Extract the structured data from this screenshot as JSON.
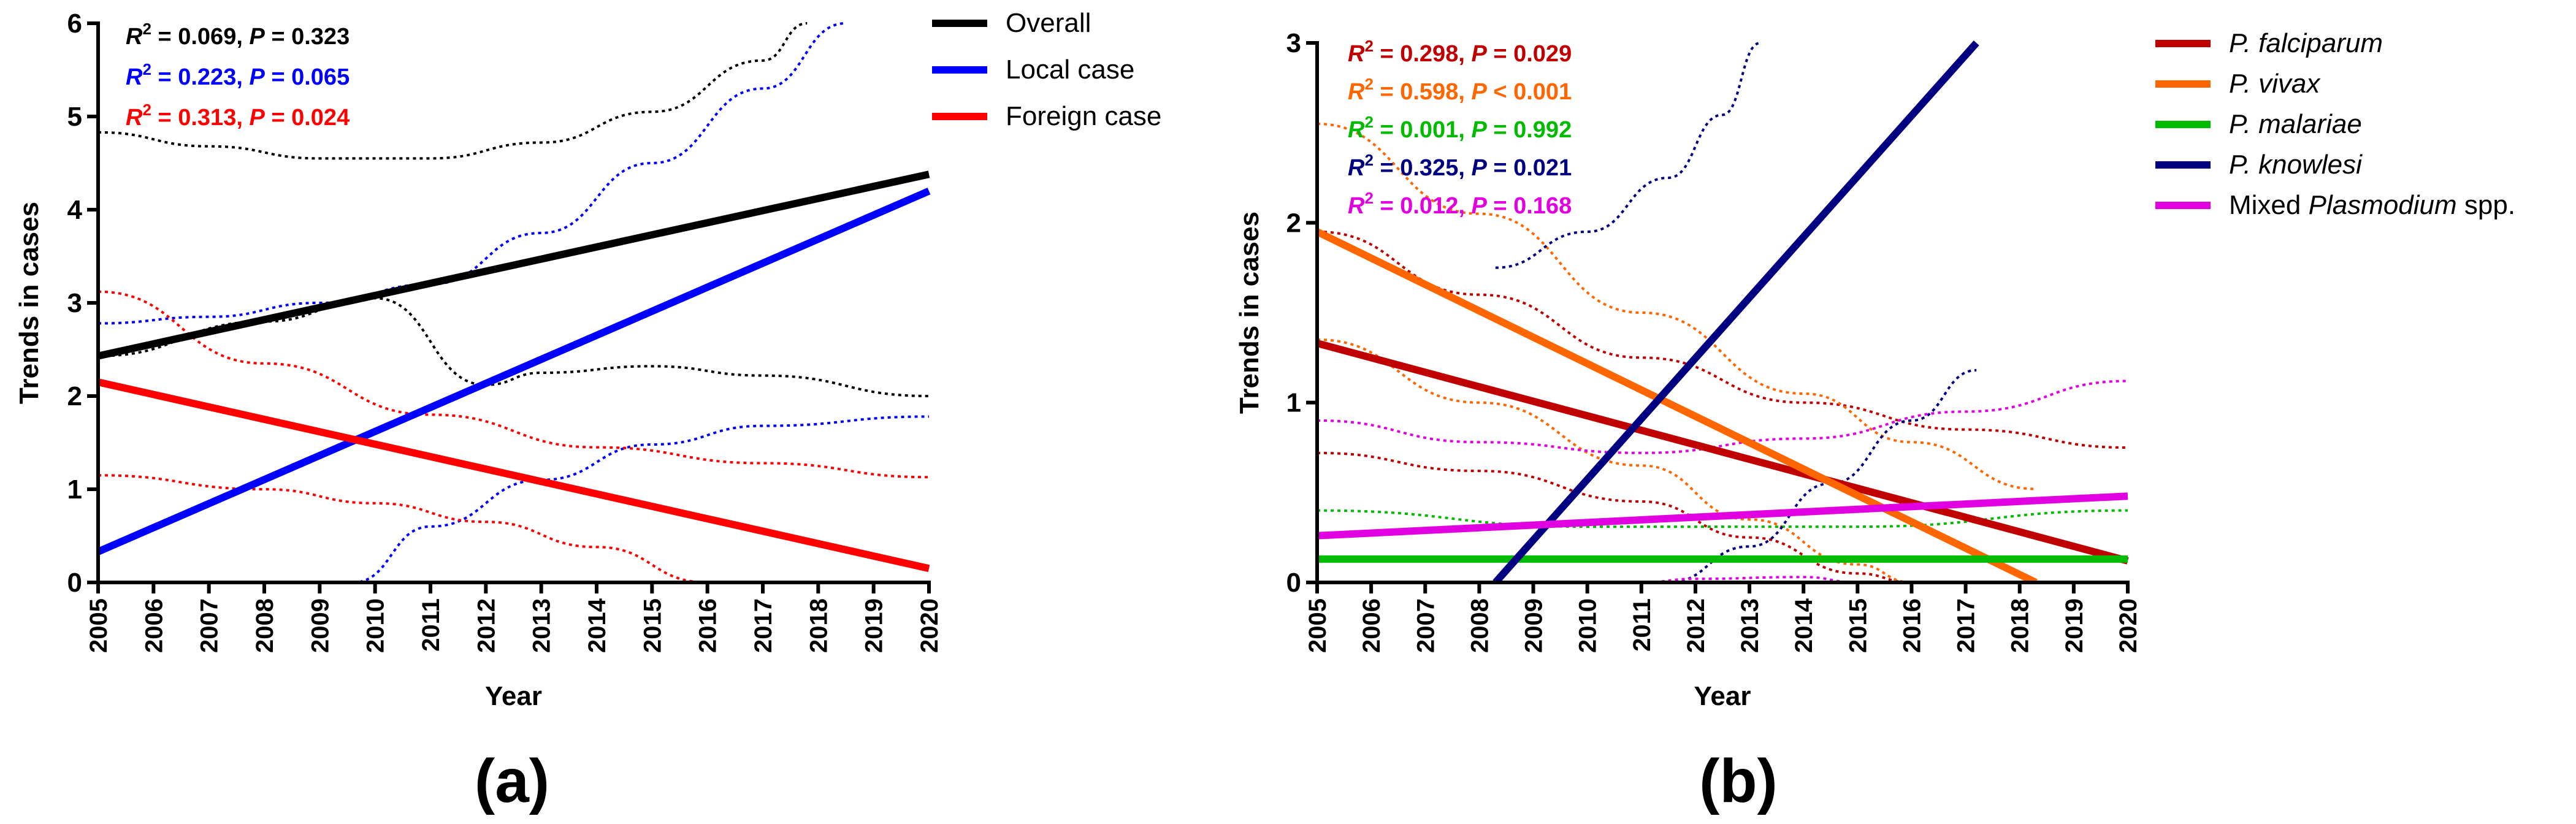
{
  "chart_data": [
    {
      "type": "line",
      "panel_label": "(a)",
      "xlabel": "Year",
      "ylabel": "Trends in cases",
      "x_ticks": [
        "2005",
        "2006",
        "2007",
        "2008",
        "2009",
        "2010",
        "2011",
        "2012",
        "2013",
        "2014",
        "2015",
        "2016",
        "2017",
        "2018",
        "2019",
        "2020"
      ],
      "xlim": [
        2005,
        2020
      ],
      "y_ticks": [
        "0",
        "1",
        "2",
        "3",
        "4",
        "5",
        "6"
      ],
      "ylim": [
        0,
        6
      ],
      "series": [
        {
          "name": "Overall",
          "color": "#000000",
          "fit": [
            [
              2005,
              2.43
            ],
            [
              2020,
              4.38
            ]
          ],
          "r2_text": "0.069",
          "p_op": "=",
          "p_text": "0.323",
          "ci_upper": [
            [
              2005,
              4.83
            ],
            [
              2007,
              4.68
            ],
            [
              2009,
              4.55
            ],
            [
              2011,
              4.55
            ],
            [
              2013,
              4.72
            ],
            [
              2015,
              5.05
            ],
            [
              2017,
              5.6
            ],
            [
              2017.8,
              6.0
            ]
          ],
          "ci_lower": [
            [
              2005,
              2.43
            ],
            [
              2008,
              2.8
            ],
            [
              2010,
              3.05
            ],
            [
              2012,
              2.12
            ],
            [
              2013,
              2.25
            ],
            [
              2015,
              2.32
            ],
            [
              2017,
              2.22
            ],
            [
              2020,
              2.0
            ]
          ]
        },
        {
          "name": "Local case",
          "color": "#0000ff",
          "fit": [
            [
              2005,
              0.33
            ],
            [
              2020,
              4.2
            ]
          ],
          "r2_text": "0.223",
          "p_op": "=",
          "p_text": "0.065",
          "ci_upper": [
            [
              2005,
              2.78
            ],
            [
              2007,
              2.85
            ],
            [
              2009,
              3.0
            ],
            [
              2011,
              3.2
            ],
            [
              2013,
              3.75
            ],
            [
              2015,
              4.5
            ],
            [
              2017,
              5.3
            ],
            [
              2018.5,
              6.0
            ]
          ],
          "ci_lower": [
            [
              2009.6,
              0.0
            ],
            [
              2011,
              0.6
            ],
            [
              2013,
              1.1
            ],
            [
              2015,
              1.48
            ],
            [
              2017,
              1.68
            ],
            [
              2020,
              1.78
            ]
          ]
        },
        {
          "name": "Foreign case",
          "color": "#ff0000",
          "fit": [
            [
              2005,
              2.15
            ],
            [
              2020,
              0.15
            ]
          ],
          "r2_text": "0.313",
          "p_op": "=",
          "p_text": "0.024",
          "ci_upper": [
            [
              2005,
              3.12
            ],
            [
              2008,
              2.35
            ],
            [
              2011,
              1.8
            ],
            [
              2014,
              1.45
            ],
            [
              2017,
              1.28
            ],
            [
              2020,
              1.13
            ]
          ],
          "ci_lower": [
            [
              2005,
              1.15
            ],
            [
              2008,
              1.0
            ],
            [
              2010,
              0.85
            ],
            [
              2012,
              0.65
            ],
            [
              2014,
              0.38
            ],
            [
              2016,
              0.0
            ]
          ]
        }
      ]
    },
    {
      "type": "line",
      "panel_label": "(b)",
      "xlabel": "Year",
      "ylabel": "Trends in cases",
      "x_ticks": [
        "2005",
        "2006",
        "2007",
        "2008",
        "2009",
        "2010",
        "2011",
        "2012",
        "2013",
        "2014",
        "2015",
        "2016",
        "2017",
        "2018",
        "2019",
        "2020"
      ],
      "xlim": [
        2005,
        2020
      ],
      "y_ticks": [
        "0",
        "1",
        "2",
        "3"
      ],
      "ylim": [
        0,
        3
      ],
      "series": [
        {
          "name": "P. falciparum",
          "italic_part": "P. falciparum",
          "plain_part": "",
          "color": "#c00000",
          "fit": [
            [
              2005,
              1.33
            ],
            [
              2020,
              0.12
            ]
          ],
          "r2_text": "0.298",
          "p_op": "=",
          "p_text": "0.029",
          "ci_upper": [
            [
              2005,
              1.95
            ],
            [
              2008,
              1.6
            ],
            [
              2011,
              1.25
            ],
            [
              2014,
              1.0
            ],
            [
              2017,
              0.85
            ],
            [
              2020,
              0.75
            ]
          ],
          "ci_lower": [
            [
              2005,
              0.72
            ],
            [
              2008,
              0.62
            ],
            [
              2011,
              0.45
            ],
            [
              2013,
              0.25
            ],
            [
              2015,
              0.05
            ],
            [
              2016,
              0.0
            ]
          ]
        },
        {
          "name": "P. vivax",
          "italic_part": "P. vivax",
          "plain_part": "",
          "color": "#ff6600",
          "fit": [
            [
              2005,
              1.95
            ],
            [
              2018.3,
              0.0
            ]
          ],
          "r2_text": "0.598",
          "p_op": "<",
          "p_text": "0.001",
          "ci_upper": [
            [
              2005,
              2.55
            ],
            [
              2008,
              2.05
            ],
            [
              2011,
              1.5
            ],
            [
              2014,
              1.05
            ],
            [
              2016,
              0.78
            ],
            [
              2018.3,
              0.52
            ]
          ],
          "ci_lower": [
            [
              2005,
              1.35
            ],
            [
              2008,
              1.0
            ],
            [
              2011,
              0.65
            ],
            [
              2013,
              0.35
            ],
            [
              2015,
              0.1
            ],
            [
              2016,
              0.0
            ]
          ]
        },
        {
          "name": "P. malariae",
          "italic_part": "P. malariae",
          "plain_part": "",
          "color": "#00bb00",
          "fit": [
            [
              2005,
              0.13
            ],
            [
              2020,
              0.13
            ]
          ],
          "r2_text": "0.001",
          "p_op": "=",
          "p_text": "0.992",
          "ci_upper": [
            [
              2005,
              0.4
            ],
            [
              2010,
              0.31
            ],
            [
              2015,
              0.31
            ],
            [
              2020,
              0.4
            ]
          ],
          "ci_lower": []
        },
        {
          "name": "P. knowlesi",
          "italic_part": "P. knowlesi",
          "plain_part": "",
          "color": "#000080",
          "fit": [
            [
              2008.3,
              0.0
            ],
            [
              2017.2,
              3.0
            ]
          ],
          "r2_text": "0.325",
          "p_op": "=",
          "p_text": "0.021",
          "ci_upper": [
            [
              2008.3,
              1.75
            ],
            [
              2010,
              1.95
            ],
            [
              2011.5,
              2.25
            ],
            [
              2012.5,
              2.6
            ],
            [
              2013.2,
              3.0
            ]
          ],
          "ci_lower": [
            [
              2011.5,
              0.0
            ],
            [
              2013,
              0.2
            ],
            [
              2014.5,
              0.55
            ],
            [
              2016,
              0.9
            ],
            [
              2017.2,
              1.18
            ]
          ]
        },
        {
          "name": "Mixed Plasmodium spp.",
          "italic_part": "Plasmodium",
          "plain_part": "",
          "color": "#e000e0",
          "fit": [
            [
              2005,
              0.26
            ],
            [
              2020,
              0.48
            ]
          ],
          "r2_text": "0.012",
          "p_op": "=",
          "p_text": "0.168",
          "ci_upper": [
            [
              2005,
              0.9
            ],
            [
              2008,
              0.78
            ],
            [
              2011,
              0.72
            ],
            [
              2014,
              0.8
            ],
            [
              2017,
              0.95
            ],
            [
              2020,
              1.12
            ]
          ],
          "ci_lower": [
            [
              2011,
              0.0
            ],
            [
              2012,
              0.02
            ],
            [
              2014,
              0.03
            ],
            [
              2015,
              0.0
            ]
          ]
        }
      ]
    }
  ],
  "legend_b_mixed": {
    "prefix": "Mixed ",
    "italic": "Plasmodium",
    "suffix": " spp."
  },
  "annotation_labels": {
    "r2": "R",
    "r2_sup": "2",
    "p": "P"
  }
}
